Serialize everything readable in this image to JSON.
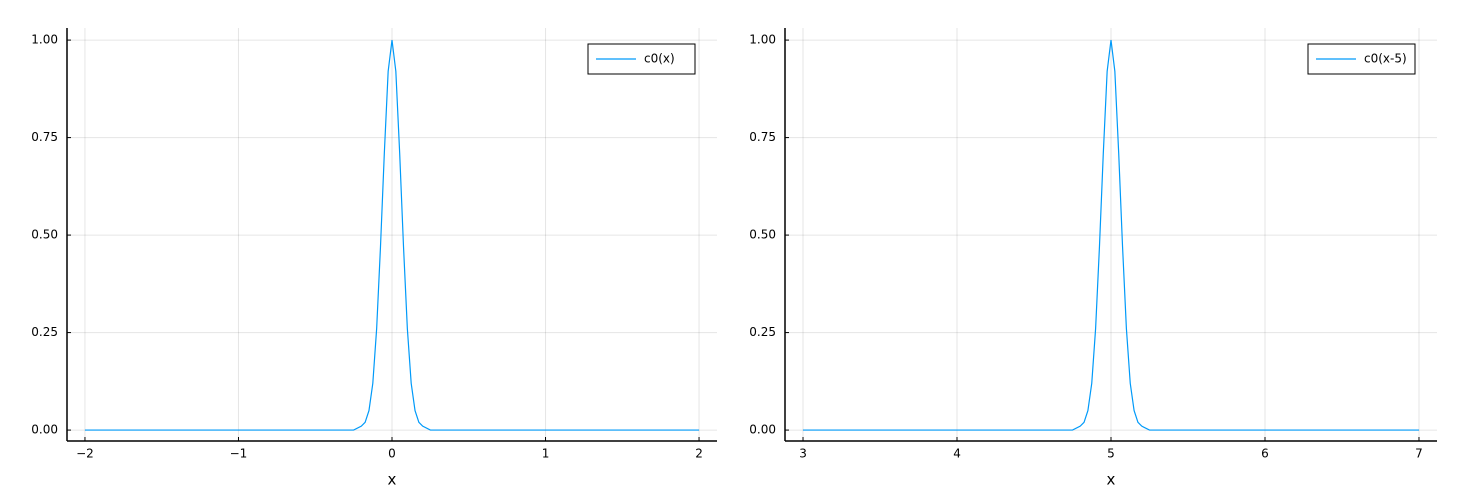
{
  "chart_data": [
    {
      "type": "line",
      "x_label": "x",
      "grid": true,
      "legend": "top-right",
      "xlim": [
        -2.117,
        2.117
      ],
      "ylim": [
        -0.028,
        1.031
      ],
      "xticks": [
        {
          "value": -2,
          "label": "−2"
        },
        {
          "value": -1,
          "label": "−1"
        },
        0,
        1,
        2
      ],
      "yticks": [
        {
          "value": 0,
          "label": "0.00"
        },
        {
          "value": 0.25,
          "label": "0.25"
        },
        {
          "value": 0.5,
          "label": "0.50"
        },
        {
          "value": 0.75,
          "label": "0.75"
        },
        {
          "value": 1,
          "label": "1.00"
        }
      ],
      "x": [
        -2,
        -0.25,
        -0.2,
        -0.175,
        -0.15,
        -0.125,
        -0.1,
        -0.075,
        -0.05,
        -0.025,
        0,
        0.025,
        0.05,
        0.075,
        0.1,
        0.125,
        0.15,
        0.175,
        0.2,
        0.25,
        2
      ],
      "series": [
        {
          "name": "c0(x)",
          "color": "#009af9",
          "values": [
            0,
            0,
            0.01,
            0.02,
            0.05,
            0.12,
            0.26,
            0.47,
            0.71,
            0.92,
            1,
            0.92,
            0.71,
            0.47,
            0.26,
            0.12,
            0.05,
            0.02,
            0.01,
            0,
            0
          ]
        }
      ]
    },
    {
      "type": "line",
      "x_label": "x",
      "grid": true,
      "legend": "top-right",
      "xlim": [
        2.883,
        7.117
      ],
      "ylim": [
        -0.028,
        1.031
      ],
      "xticks": [
        3,
        4,
        5,
        6,
        7
      ],
      "yticks": [
        {
          "value": 0,
          "label": "0.00"
        },
        {
          "value": 0.25,
          "label": "0.25"
        },
        {
          "value": 0.5,
          "label": "0.50"
        },
        {
          "value": 0.75,
          "label": "0.75"
        },
        {
          "value": 1,
          "label": "1.00"
        }
      ],
      "x": [
        3,
        4.75,
        4.8,
        4.825,
        4.85,
        4.875,
        4.9,
        4.925,
        4.95,
        4.975,
        5,
        5.025,
        5.05,
        5.075,
        5.1,
        5.125,
        5.15,
        5.175,
        5.2,
        5.25,
        7
      ],
      "series": [
        {
          "name": "c0(x-5)",
          "color": "#009af9",
          "values": [
            0,
            0,
            0.01,
            0.02,
            0.05,
            0.12,
            0.26,
            0.47,
            0.71,
            0.92,
            1,
            0.92,
            0.71,
            0.47,
            0.26,
            0.12,
            0.05,
            0.02,
            0.01,
            0,
            0
          ]
        }
      ]
    }
  ]
}
